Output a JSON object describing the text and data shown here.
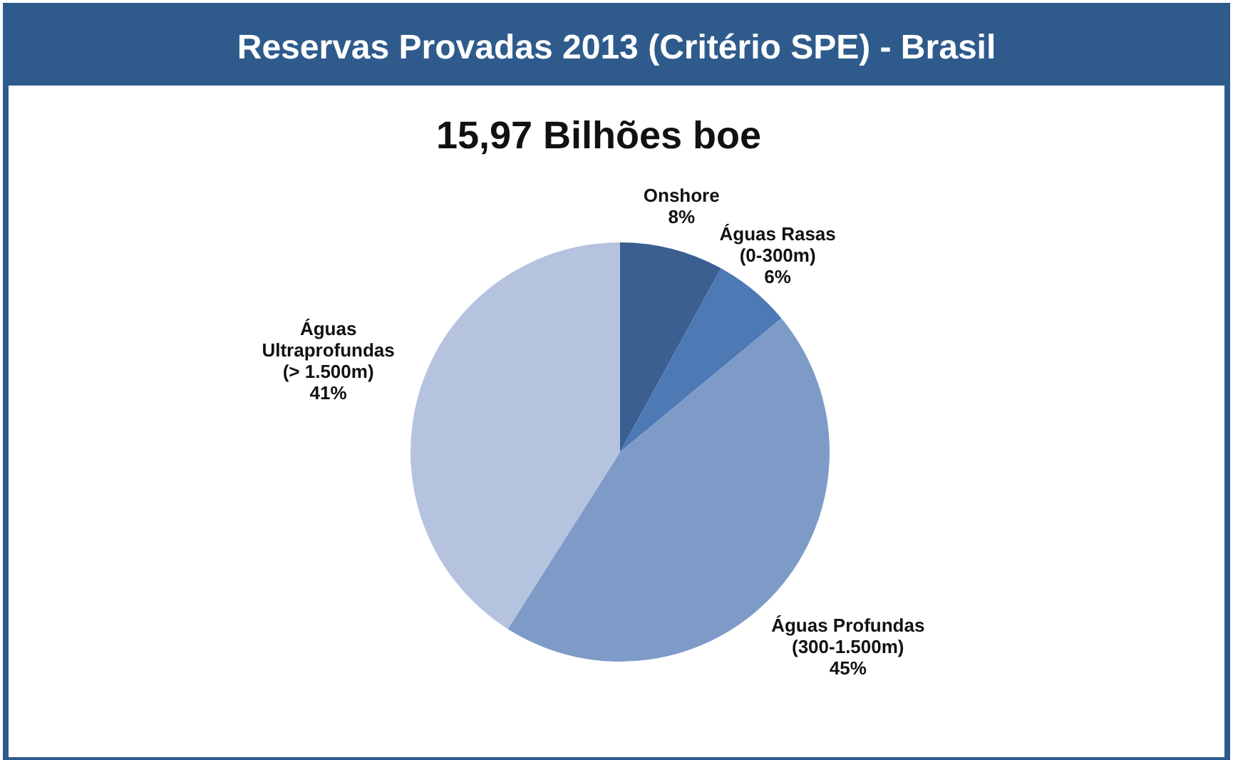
{
  "chart_data": {
    "type": "pie",
    "title": "Reservas Provadas 2013 (Critério SPE) - Brasil",
    "subtitle": "15,97 Bilhões boe",
    "categories": [
      "Onshore",
      "Águas Rasas\n(0-300m)",
      "Águas Profundas\n(300-1.500m)",
      "Águas\nUltraprofundas\n(> 1.500m)"
    ],
    "values": [
      8,
      6,
      45,
      41
    ],
    "colors": [
      "#3b5f90",
      "#4d79b5",
      "#7e9bc8",
      "#b5c3df"
    ],
    "value_labels": [
      "8%",
      "6%",
      "45%",
      "41%"
    ]
  }
}
